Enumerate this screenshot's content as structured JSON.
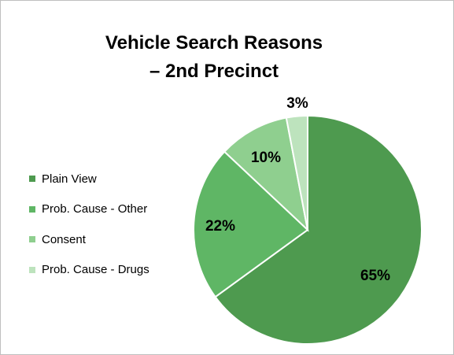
{
  "chart_data": {
    "type": "pie",
    "title": "Vehicle Search Reasons – 2nd Precinct",
    "title_lines": [
      "Vehicle Search Reasons",
      "– 2nd Precinct"
    ],
    "categories": [
      "Plain View",
      "Prob. Cause - Other",
      "Consent",
      "Prob. Cause - Drugs"
    ],
    "values": [
      65,
      22,
      10,
      3
    ],
    "data_labels": [
      "65%",
      "22%",
      "10%",
      "3%"
    ],
    "colors": [
      "#4e9a4f",
      "#5fb665",
      "#8fcf8f",
      "#bde3bd"
    ],
    "legend_position": "left",
    "start_angle": "12 o'clock",
    "direction": "clockwise"
  }
}
